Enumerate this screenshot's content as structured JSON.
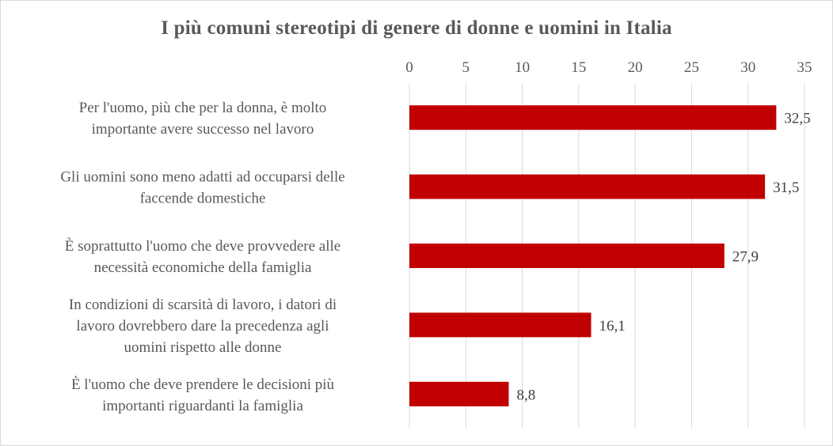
{
  "chart_data": {
    "type": "bar",
    "orientation": "horizontal",
    "title": "I più comuni stereotipi di genere di donne e uomini in Italia",
    "categories": [
      [
        "Per l'uomo, più che per la donna, è molto",
        "importante avere successo nel lavoro"
      ],
      [
        "Gli uomini sono meno adatti ad occuparsi delle",
        "faccende domestiche"
      ],
      [
        "È soprattutto l'uomo che deve provvedere alle",
        "necessità economiche della famiglia"
      ],
      [
        "In condizioni di scarsità di lavoro, i datori di",
        "lavoro dovrebbero dare la precedenza agli",
        "uomini rispetto alle donne"
      ],
      [
        "È l'uomo che deve prendere le decisioni più",
        "importanti riguardanti la famiglia"
      ]
    ],
    "values": [
      32.5,
      31.5,
      27.9,
      16.1,
      8.8
    ],
    "data_labels": [
      "32,5",
      "31,5",
      "27,9",
      "16,1",
      "8,8"
    ],
    "x_ticks": [
      "0",
      "5",
      "10",
      "15",
      "20",
      "25",
      "30",
      "35"
    ],
    "x_tick_values": [
      0,
      5,
      10,
      15,
      20,
      25,
      30,
      35
    ],
    "xlim": [
      0,
      35
    ],
    "x_axis_position": "top",
    "grid": true,
    "legend": "none",
    "bar_color": "#c00000"
  }
}
